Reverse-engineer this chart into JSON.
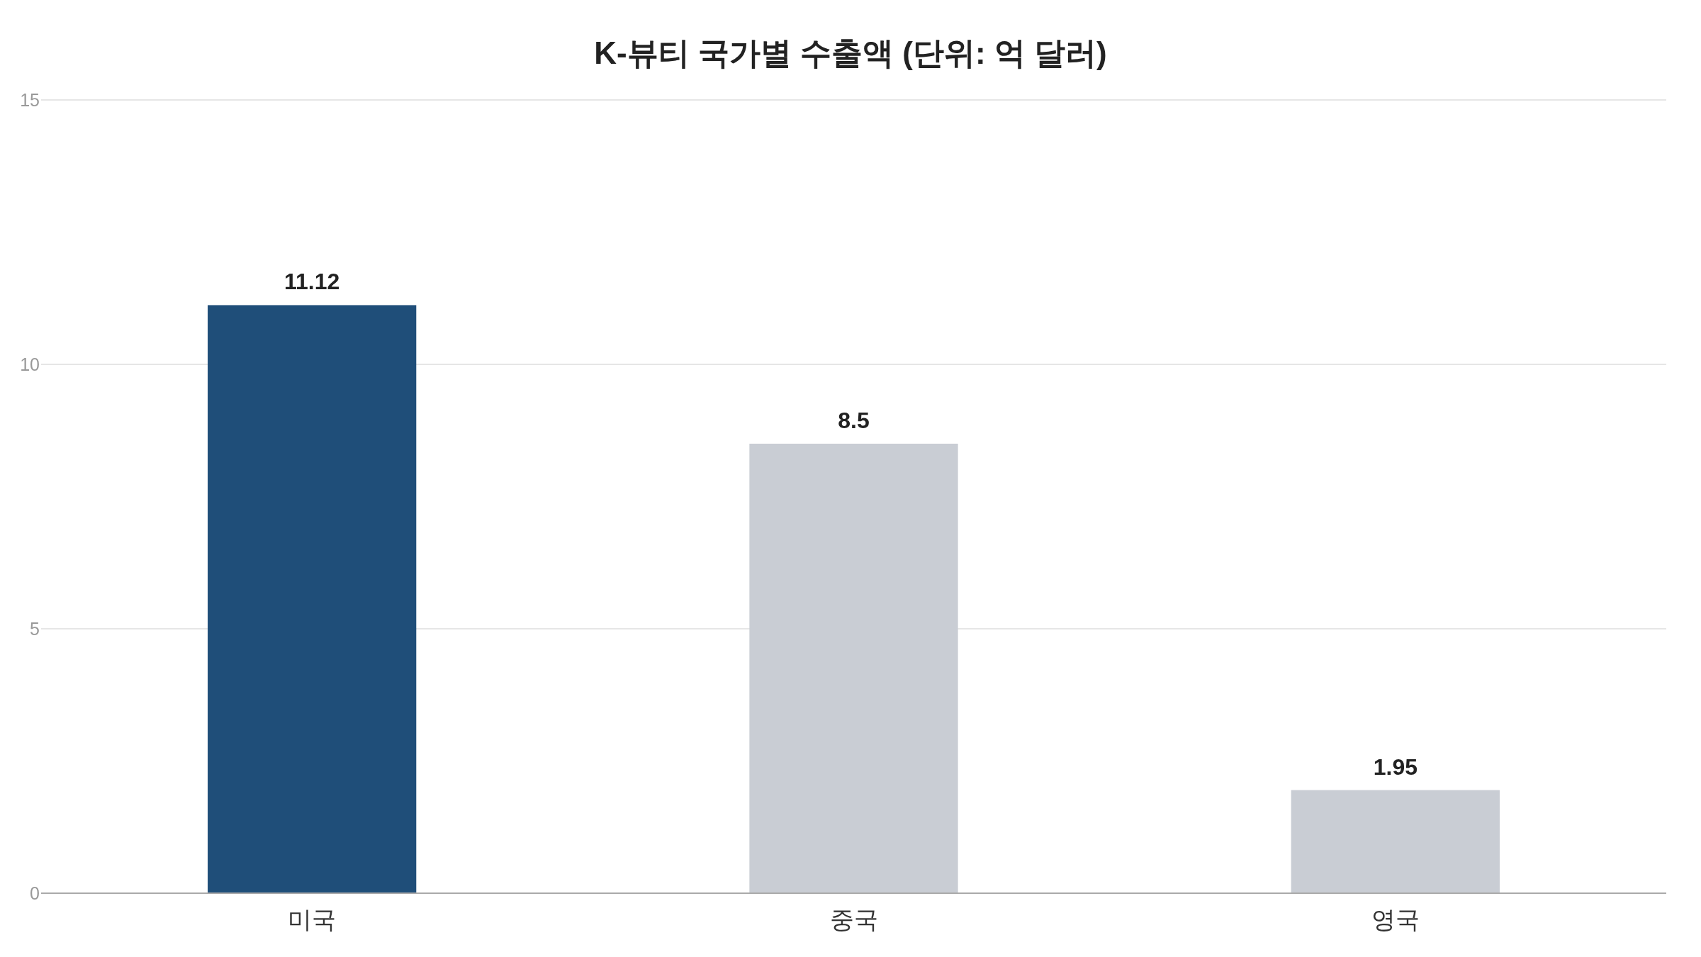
{
  "chart_data": {
    "type": "bar",
    "title": "K-뷰티 국가별 수출액 (단위: 억 달러)",
    "categories": [
      "미국",
      "중국",
      "영국"
    ],
    "values": [
      11.12,
      8.5,
      1.95
    ],
    "colors": [
      "#1f4e79",
      "#c9cdd4",
      "#c9cdd4"
    ],
    "ylim": [
      0,
      15
    ],
    "yticks": [
      0,
      5,
      10,
      15
    ],
    "grid": "y",
    "data_labels": true
  }
}
